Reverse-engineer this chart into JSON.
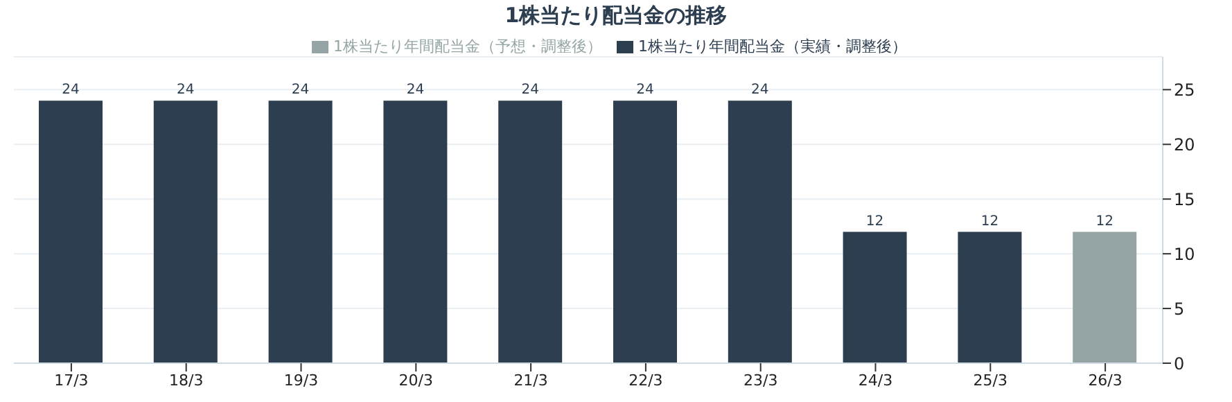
{
  "chart_data": {
    "type": "bar",
    "title": "1株当たり配当金の推移",
    "categories": [
      "17/3",
      "18/3",
      "19/3",
      "20/3",
      "21/3",
      "22/3",
      "23/3",
      "24/3",
      "25/3",
      "26/3"
    ],
    "series": [
      {
        "name": "1株当たり年間配当金（実績・調整後）",
        "color": "#2c3e50",
        "values": [
          24,
          24,
          24,
          24,
          24,
          24,
          24,
          12,
          12,
          null
        ]
      },
      {
        "name": "1株当たり年間配当金（予想・調整後）",
        "color": "#95a5a6",
        "values": [
          null,
          null,
          null,
          null,
          null,
          null,
          null,
          null,
          null,
          12
        ]
      }
    ],
    "stacked": true,
    "ylim": [
      0,
      28
    ],
    "yticks": [
      0,
      5,
      10,
      15,
      20,
      25
    ],
    "grid": "y",
    "legend": "top",
    "data_labels": true
  }
}
